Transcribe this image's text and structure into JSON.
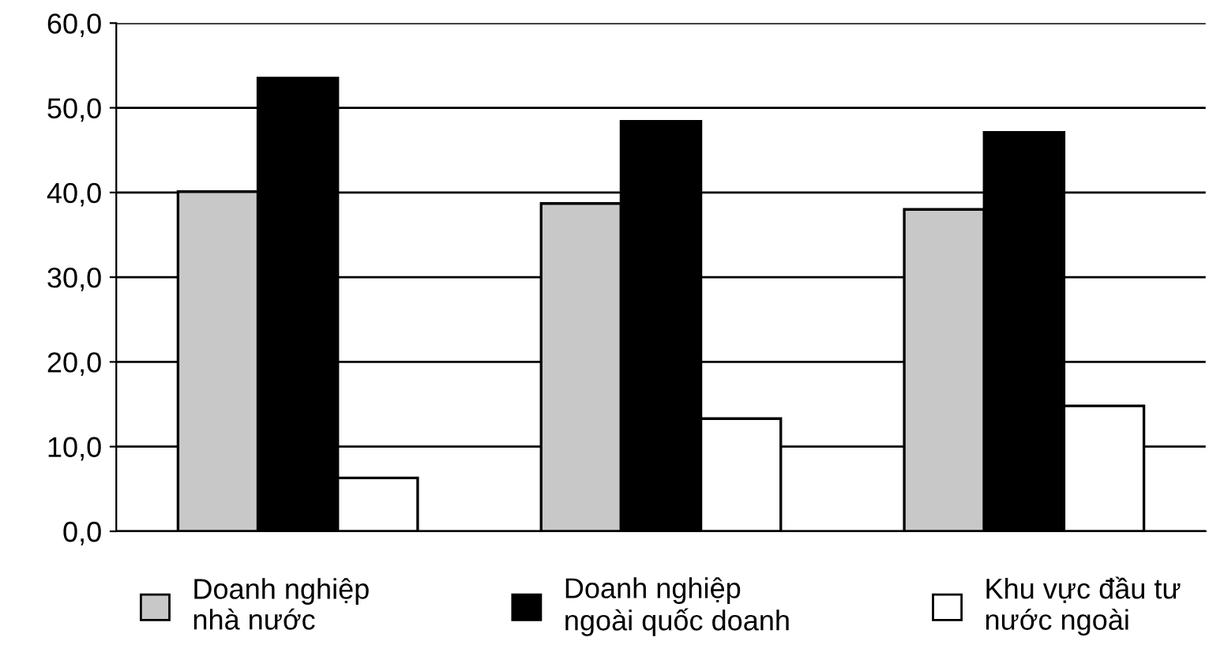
{
  "chart_data": {
    "type": "bar",
    "categories": [
      null,
      null,
      null
    ],
    "series": [
      {
        "name": "Doanh nghiệp\nnhà nước",
        "color": "#c8c8c8",
        "values": [
          40.1,
          38.7,
          38.0
        ]
      },
      {
        "name": "Doanh nghiệp\nngoài quốc doanh",
        "color": "#000000",
        "values": [
          53.5,
          48.4,
          47.1
        ]
      },
      {
        "name": "Khu vực đầu tư\nnước ngoài",
        "color": "#ffffff",
        "values": [
          6.3,
          13.3,
          14.8
        ]
      }
    ],
    "ylim": [
      0,
      60
    ],
    "yticks": [
      {
        "value": 0,
        "label": "0,0"
      },
      {
        "value": 10,
        "label": "10,0"
      },
      {
        "value": 20,
        "label": "20,0"
      },
      {
        "value": 30,
        "label": "30,0"
      },
      {
        "value": 40,
        "label": "40,0"
      },
      {
        "value": 50,
        "label": "50,0"
      },
      {
        "value": 60,
        "label": "60,0"
      }
    ],
    "grid": "y",
    "legend": "bottom"
  }
}
